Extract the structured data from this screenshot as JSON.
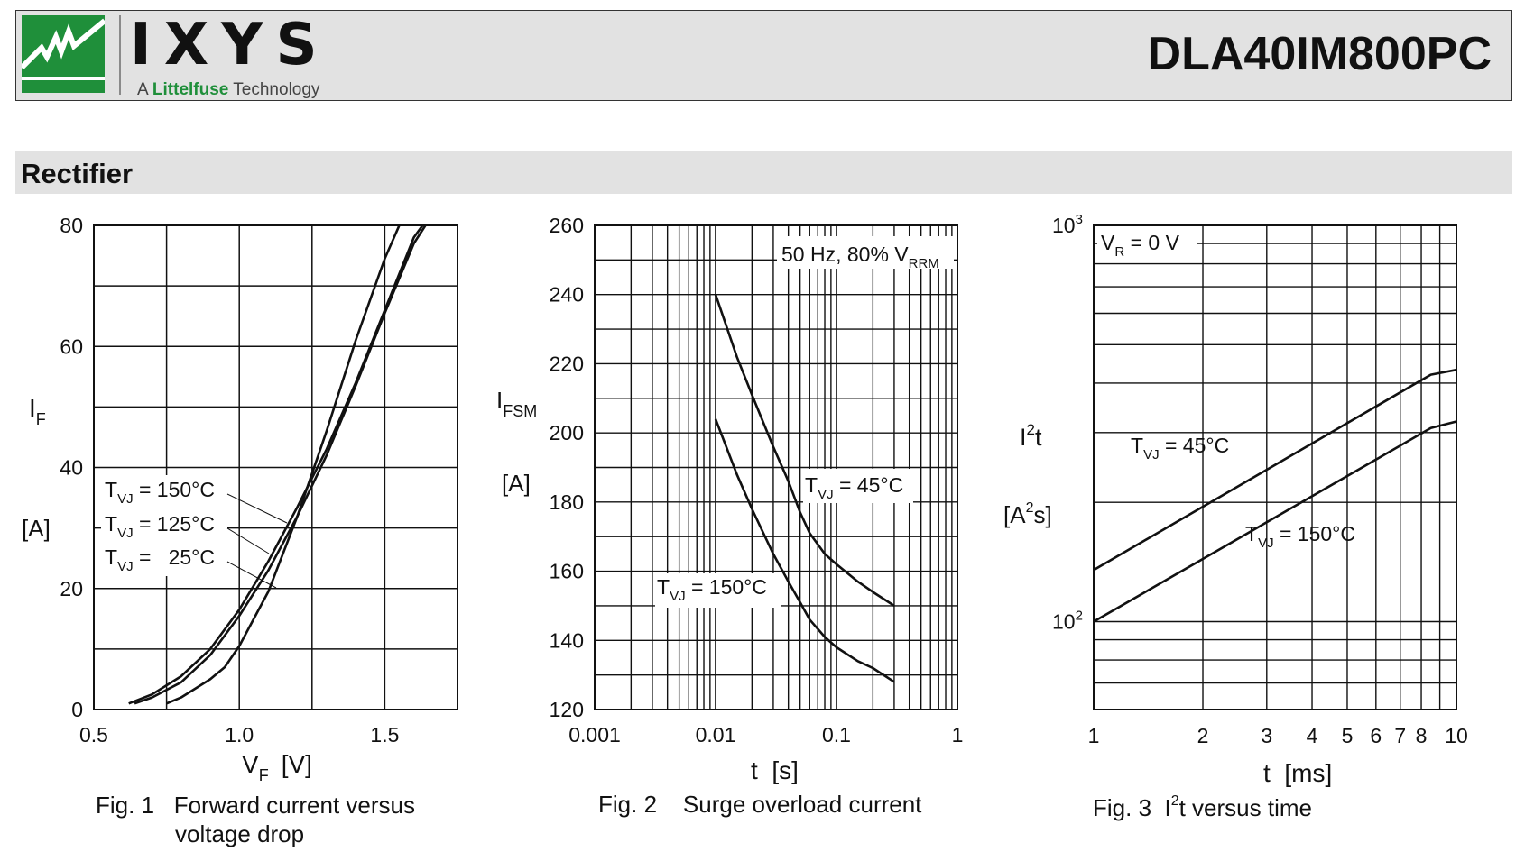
{
  "header": {
    "brand": "IXYS",
    "tagline_prefix": "A",
    "tagline_brand": "Littelfuse",
    "tagline_suffix": "Technology",
    "part_number": "DLA40IM800PC",
    "brand_green": "#1f8f3a"
  },
  "section": {
    "title": "Rectifier"
  },
  "chart_data": [
    {
      "type": "line",
      "caption": "Fig. 1   Forward current versus",
      "caption_line2": "voltage drop",
      "xlabel_main": "V",
      "xlabel_sub": "F",
      "xlabel_unit": "[V]",
      "ylabel_main": "I",
      "ylabel_sub": "F",
      "ylabel_unit": "[A]",
      "xlim": [
        0.5,
        1.75
      ],
      "ylim": [
        0,
        80
      ],
      "x_ticks": [
        0.5,
        1.0,
        1.5
      ],
      "x_tick_labels": [
        "0.5",
        "1.0",
        "1.5"
      ],
      "y_ticks": [
        0,
        20,
        40,
        60,
        80
      ],
      "y_tick_labels": [
        "0",
        "20",
        "40",
        "60",
        "80"
      ],
      "grid": true,
      "series": [
        {
          "name": "T_VJ = 150°C",
          "x": [
            0.62,
            0.7,
            0.8,
            0.9,
            1.0,
            1.1,
            1.2,
            1.3,
            1.4,
            1.5,
            1.6,
            1.63
          ],
          "y": [
            1,
            2.5,
            5.5,
            10,
            16.5,
            24.5,
            33.5,
            43,
            54,
            66,
            78,
            80
          ]
        },
        {
          "name": "T_VJ = 125°C",
          "x": [
            0.64,
            0.7,
            0.8,
            0.9,
            1.0,
            1.1,
            1.2,
            1.3,
            1.4,
            1.5,
            1.6,
            1.64
          ],
          "y": [
            1,
            2,
            4.5,
            9,
            15.5,
            23,
            32,
            42,
            53.5,
            65.5,
            77,
            80
          ]
        },
        {
          "name": "T_VJ =   25°C",
          "x": [
            0.75,
            0.8,
            0.9,
            0.95,
            1.0,
            1.1,
            1.2,
            1.3,
            1.4,
            1.5,
            1.55
          ],
          "y": [
            1,
            2,
            5,
            7,
            10.5,
            19.5,
            32,
            46,
            61,
            74.5,
            80
          ]
        }
      ],
      "legend": [
        {
          "main": "T",
          "sub": "VJ",
          "text": " = 150°C"
        },
        {
          "main": "T",
          "sub": "VJ",
          "text": " = 125°C"
        },
        {
          "main": "T",
          "sub": "VJ",
          "text": " =   25°C"
        }
      ]
    },
    {
      "type": "line",
      "caption": "Fig. 2    Surge overload current",
      "xlabel": "t  [s]",
      "ylabel_main": "I",
      "ylabel_sub": "FSM",
      "ylabel_unit": "[A]",
      "x_scale": "log",
      "xlim": [
        0.001,
        1
      ],
      "ylim": [
        120,
        260
      ],
      "x_ticks": [
        0.001,
        0.01,
        0.1,
        1
      ],
      "x_tick_labels": [
        "0.001",
        "0.01",
        "0.1",
        "1"
      ],
      "y_ticks": [
        120,
        140,
        160,
        180,
        200,
        220,
        240,
        260
      ],
      "y_tick_labels": [
        "120",
        "140",
        "160",
        "180",
        "200",
        "220",
        "240",
        "260"
      ],
      "grid": true,
      "annotation": {
        "main": "50 Hz, 80% V",
        "sub": "RRM"
      },
      "series": [
        {
          "name": "T_VJ = 45°C",
          "x": [
            0.01,
            0.015,
            0.02,
            0.03,
            0.04,
            0.05,
            0.06,
            0.08,
            0.1,
            0.15,
            0.2,
            0.3
          ],
          "y": [
            240,
            222,
            211,
            196,
            186,
            177,
            171,
            165,
            162,
            157,
            154,
            150
          ]
        },
        {
          "name": "T_VJ = 150°C",
          "x": [
            0.01,
            0.015,
            0.02,
            0.03,
            0.04,
            0.05,
            0.06,
            0.08,
            0.1,
            0.15,
            0.2,
            0.3
          ],
          "y": [
            204,
            188,
            178,
            165,
            157,
            151,
            146,
            141,
            138,
            134,
            132,
            128
          ]
        }
      ],
      "labels": [
        {
          "main": "T",
          "sub": "VJ",
          "text": " = 45°C"
        },
        {
          "main": "T",
          "sub": "VJ",
          "text": " = 150°C"
        }
      ]
    },
    {
      "type": "line",
      "caption_main": "Fig. 3  I",
      "caption_sup": "2",
      "caption_rest": "t versus time",
      "xlabel": "t  [ms]",
      "ylabel_main": "I",
      "ylabel_sup": "2",
      "ylabel_rest": "t",
      "ylabel_unit_pre": "[A",
      "ylabel_unit_sup": "2",
      "ylabel_unit_post": "s]",
      "x_scale": "log",
      "y_scale": "log",
      "xlim": [
        1,
        10
      ],
      "ylim": [
        60,
        1000
      ],
      "x_ticks": [
        1,
        2,
        3,
        4,
        5,
        6,
        7,
        8,
        10
      ],
      "x_tick_labels": [
        "1",
        "2",
        "3",
        "4",
        "5",
        "6",
        "7",
        "8",
        "10"
      ],
      "y_tick_labels": [
        {
          "base": "10",
          "exp": "2",
          "value": 100
        },
        {
          "base": "10",
          "exp": "3",
          "value": 1000
        }
      ],
      "grid": true,
      "annotation": {
        "main": "V",
        "sub": "R",
        "text": " = 0 V"
      },
      "series": [
        {
          "name": "T_VJ = 45°C",
          "x": [
            1,
            8.5,
            10
          ],
          "y": [
            135,
            420,
            432
          ]
        },
        {
          "name": "T_VJ = 150°C",
          "x": [
            1,
            8.5,
            10
          ],
          "y": [
            100,
            308,
            320
          ]
        }
      ],
      "labels": [
        {
          "main": "T",
          "sub": "VJ",
          "text": " = 45°C"
        },
        {
          "main": "T",
          "sub": "VJ",
          "text": " = 150°C"
        }
      ]
    }
  ]
}
